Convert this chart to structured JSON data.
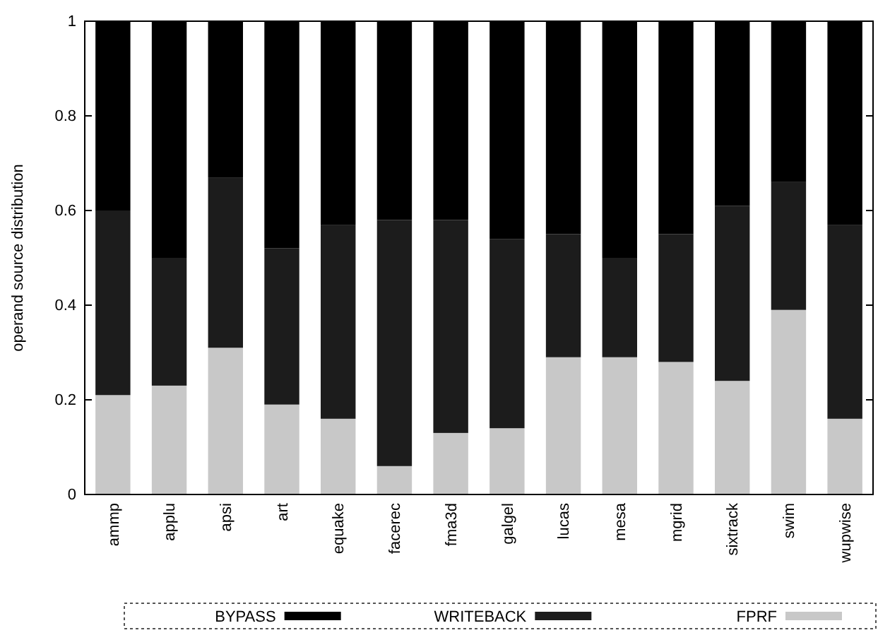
{
  "chart_data": {
    "type": "bar",
    "stacked": true,
    "ylabel": "operand source distribution",
    "categories": [
      "ammp",
      "applu",
      "apsi",
      "art",
      "equake",
      "facerec",
      "fma3d",
      "galgel",
      "lucas",
      "mesa",
      "mgrid",
      "sixtrack",
      "swim",
      "wupwise"
    ],
    "series": [
      {
        "name": "FPRF",
        "color": "#c8c8c8",
        "values": [
          0.21,
          0.23,
          0.31,
          0.19,
          0.16,
          0.06,
          0.13,
          0.14,
          0.29,
          0.29,
          0.28,
          0.24,
          0.39,
          0.16
        ]
      },
      {
        "name": "WRITEBACK",
        "color": "#1c1c1c",
        "values": [
          0.39,
          0.27,
          0.36,
          0.33,
          0.41,
          0.52,
          0.45,
          0.4,
          0.26,
          0.21,
          0.27,
          0.37,
          0.27,
          0.41
        ]
      },
      {
        "name": "BYPASS",
        "color": "#000000",
        "values": [
          0.4,
          0.5,
          0.33,
          0.48,
          0.43,
          0.42,
          0.42,
          0.46,
          0.45,
          0.5,
          0.45,
          0.39,
          0.34,
          0.43
        ]
      }
    ],
    "ylim": [
      0,
      1
    ],
    "yticks": [
      0,
      0.2,
      0.4,
      0.6,
      0.8,
      1
    ],
    "legend": "bottom"
  }
}
